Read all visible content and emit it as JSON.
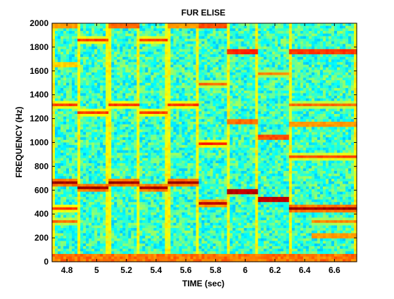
{
  "chart_data": {
    "type": "heatmap",
    "title": "FUR ELISE",
    "xlabel": "TIME (sec)",
    "ylabel": "FREQUENCY (Hz)",
    "xlim": [
      4.7,
      6.75
    ],
    "ylim": [
      0,
      2000
    ],
    "x_ticks": [
      4.8,
      5.0,
      5.2,
      5.4,
      5.6,
      5.8,
      6.0,
      6.2,
      6.4,
      6.6
    ],
    "x_tick_labels": [
      "4.8",
      "5",
      "5.2",
      "5.4",
      "5.6",
      "5.8",
      "6",
      "6.2",
      "6.4",
      "6.6"
    ],
    "y_ticks": [
      0,
      200,
      400,
      600,
      800,
      1000,
      1200,
      1400,
      1600,
      1800,
      2000
    ],
    "y_tick_labels": [
      "0",
      "200",
      "400",
      "600",
      "800",
      "1000",
      "1200",
      "1400",
      "1600",
      "1800",
      "2000"
    ],
    "colormap": [
      "#00008f",
      "#0000ff",
      "#0080ff",
      "#00ffff",
      "#80ff80",
      "#ffff00",
      "#ff8000",
      "#ff0000",
      "#800000"
    ],
    "note_onsets": [
      4.7,
      4.88,
      5.08,
      5.28,
      5.48,
      5.68,
      5.88,
      6.08,
      6.3,
      6.75
    ],
    "notes": [
      {
        "t0": 4.7,
        "t1": 4.88,
        "f": 660,
        "level": 0.95
      },
      {
        "t0": 4.7,
        "t1": 4.88,
        "f": 1320,
        "level": 0.8
      },
      {
        "t0": 4.7,
        "t1": 4.88,
        "f": 440,
        "level": 0.8
      },
      {
        "t0": 4.7,
        "t1": 4.88,
        "f": 330,
        "level": 0.75
      },
      {
        "t0": 4.7,
        "t1": 4.88,
        "f": 1980,
        "level": 0.7
      },
      {
        "t0": 4.7,
        "t1": 4.88,
        "f": 1650,
        "level": 0.65
      },
      {
        "t0": 4.88,
        "t1": 5.08,
        "f": 622,
        "level": 0.95
      },
      {
        "t0": 4.88,
        "t1": 5.08,
        "f": 1244,
        "level": 0.8
      },
      {
        "t0": 4.88,
        "t1": 5.08,
        "f": 1866,
        "level": 0.8
      },
      {
        "t0": 5.08,
        "t1": 5.28,
        "f": 660,
        "level": 0.95
      },
      {
        "t0": 5.08,
        "t1": 5.28,
        "f": 1320,
        "level": 0.8
      },
      {
        "t0": 5.08,
        "t1": 5.28,
        "f": 1980,
        "level": 0.75
      },
      {
        "t0": 5.28,
        "t1": 5.48,
        "f": 622,
        "level": 0.95
      },
      {
        "t0": 5.28,
        "t1": 5.48,
        "f": 1244,
        "level": 0.8
      },
      {
        "t0": 5.28,
        "t1": 5.48,
        "f": 1866,
        "level": 0.8
      },
      {
        "t0": 5.48,
        "t1": 5.68,
        "f": 660,
        "level": 0.95
      },
      {
        "t0": 5.48,
        "t1": 5.68,
        "f": 1320,
        "level": 0.8
      },
      {
        "t0": 5.48,
        "t1": 5.68,
        "f": 1980,
        "level": 0.7
      },
      {
        "t0": 5.68,
        "t1": 5.88,
        "f": 494,
        "level": 0.92
      },
      {
        "t0": 5.68,
        "t1": 5.88,
        "f": 988,
        "level": 0.82
      },
      {
        "t0": 5.68,
        "t1": 5.88,
        "f": 1482,
        "level": 0.75
      },
      {
        "t0": 5.68,
        "t1": 5.88,
        "f": 1976,
        "level": 0.78
      },
      {
        "t0": 5.88,
        "t1": 6.08,
        "f": 587,
        "level": 0.92
      },
      {
        "t0": 5.88,
        "t1": 6.08,
        "f": 1174,
        "level": 0.75
      },
      {
        "t0": 5.88,
        "t1": 6.08,
        "f": 1761,
        "level": 0.82
      },
      {
        "t0": 6.08,
        "t1": 6.3,
        "f": 523,
        "level": 0.92
      },
      {
        "t0": 6.08,
        "t1": 6.3,
        "f": 1046,
        "level": 0.78
      },
      {
        "t0": 6.08,
        "t1": 6.3,
        "f": 1569,
        "level": 0.72
      },
      {
        "t0": 6.3,
        "t1": 6.75,
        "f": 440,
        "level": 0.95
      },
      {
        "t0": 6.3,
        "t1": 6.75,
        "f": 880,
        "level": 0.78
      },
      {
        "t0": 6.3,
        "t1": 6.75,
        "f": 1320,
        "level": 0.75
      },
      {
        "t0": 6.3,
        "t1": 6.75,
        "f": 1760,
        "level": 0.8
      },
      {
        "t0": 6.45,
        "t1": 6.75,
        "f": 330,
        "level": 0.72
      },
      {
        "t0": 6.45,
        "t1": 6.75,
        "f": 220,
        "level": 0.7
      },
      {
        "t0": 6.3,
        "t1": 6.75,
        "f": 1150,
        "level": 0.7
      }
    ],
    "grid": false
  }
}
